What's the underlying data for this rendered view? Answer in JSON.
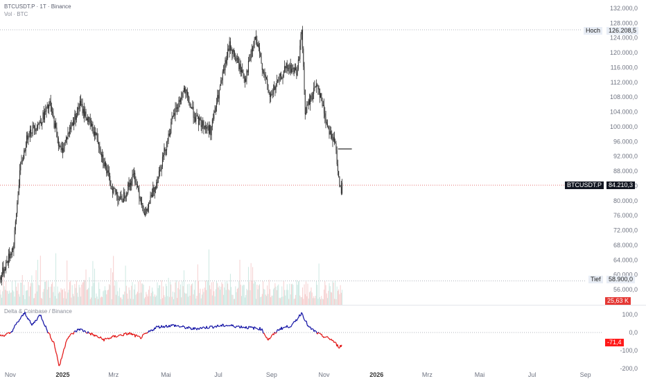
{
  "header": {
    "symbol_line": "BTCUSDT.P · 1T · Binance",
    "volume_line": "Vol · BTC",
    "osc_line": "Delta & Coinbase / Binance"
  },
  "price_axis": [
    "132.000,0",
    "128.000,0",
    "124.000,0",
    "120.000,0",
    "116.000,0",
    "112.000,0",
    "108.000,0",
    "104.000,0",
    "100.000,0",
    "96.000,0",
    "92.000,0",
    "88.000,0",
    "84.000,0",
    "80.000,0",
    "76.000,0",
    "72.000,0",
    "68.000,0",
    "64.000,0",
    "60.000,0",
    "56.000,0"
  ],
  "osc_axis": [
    "100,0",
    "0,0",
    "-100,0",
    "-200,0"
  ],
  "x_axis": [
    {
      "label": "Nov",
      "bold": false
    },
    {
      "label": "2025",
      "bold": true
    },
    {
      "label": "Mrz",
      "bold": false
    },
    {
      "label": "Mai",
      "bold": false
    },
    {
      "label": "Jul",
      "bold": false
    },
    {
      "label": "Sep",
      "bold": false
    },
    {
      "label": "Nov",
      "bold": false
    },
    {
      "label": "2026",
      "bold": true
    },
    {
      "label": "Mrz",
      "bold": false
    },
    {
      "label": "Mai",
      "bold": false
    },
    {
      "label": "Jul",
      "bold": false
    },
    {
      "label": "Sep",
      "bold": false
    }
  ],
  "labels": {
    "high_label": "Hoch",
    "high_value": "126.208,5",
    "low_label": "Tief",
    "low_value": "58.900,0",
    "symbol_tag": "BTCUSDT.P",
    "last_price": "84.210,3",
    "volume_value": "25,63 K",
    "osc_value": "-71,4"
  },
  "colors": {
    "candle": "#2b2b2b",
    "vol_up": "#c7e6df",
    "vol_down": "#f5c9c9",
    "osc_pos": "#1a1aa8",
    "osc_neg": "#e31b1b",
    "dotted": "#b0b4bd"
  },
  "chart_data": {
    "type": "candlestick",
    "price_ylim": [
      56000,
      132000
    ],
    "price_keypoints": [
      [
        "2024-10-20",
        59000
      ],
      [
        "2024-11-05",
        68000
      ],
      [
        "2024-11-12",
        88000
      ],
      [
        "2024-11-22",
        98500
      ],
      [
        "2024-12-05",
        101000
      ],
      [
        "2024-12-17",
        106000
      ],
      [
        "2024-12-30",
        93000
      ],
      [
        "2025-01-07",
        98000
      ],
      [
        "2025-01-21",
        106000
      ],
      [
        "2025-02-10",
        97000
      ],
      [
        "2025-02-26",
        84000
      ],
      [
        "2025-03-10",
        80000
      ],
      [
        "2025-03-25",
        87000
      ],
      [
        "2025-04-07",
        76000
      ],
      [
        "2025-04-21",
        86000
      ],
      [
        "2025-05-10",
        103000
      ],
      [
        "2025-05-22",
        110000
      ],
      [
        "2025-06-05",
        102000
      ],
      [
        "2025-06-22",
        99000
      ],
      [
        "2025-07-14",
        122000
      ],
      [
        "2025-08-01",
        113000
      ],
      [
        "2025-08-13",
        124000
      ],
      [
        "2025-08-30",
        108000
      ],
      [
        "2025-09-18",
        116000
      ],
      [
        "2025-10-01",
        115000
      ],
      [
        "2025-10-06",
        126208
      ],
      [
        "2025-10-10",
        104000
      ],
      [
        "2025-10-24",
        112000
      ],
      [
        "2025-11-04",
        101000
      ],
      [
        "2025-11-14",
        95000
      ],
      [
        "2025-11-21",
        81000
      ],
      [
        "2025-11-22",
        84210
      ]
    ],
    "high": 126208.5,
    "low": 58900.0,
    "last": 84210.3,
    "volume_last": "25,63 K",
    "osc_ylim": [
      -200,
      120
    ],
    "osc_keypoints": [
      [
        "2024-10-20",
        -20
      ],
      [
        "2024-11-01",
        -5
      ],
      [
        "2024-11-10",
        60
      ],
      [
        "2024-11-18",
        110
      ],
      [
        "2024-11-26",
        40
      ],
      [
        "2024-12-06",
        100
      ],
      [
        "2024-12-14",
        10
      ],
      [
        "2024-12-22",
        -60
      ],
      [
        "2024-12-28",
        -190
      ],
      [
        "2025-01-06",
        -30
      ],
      [
        "2025-01-20",
        20
      ],
      [
        "2025-02-04",
        -10
      ],
      [
        "2025-02-18",
        -40
      ],
      [
        "2025-03-04",
        -20
      ],
      [
        "2025-03-20",
        -5
      ],
      [
        "2025-04-01",
        -30
      ],
      [
        "2025-04-20",
        30
      ],
      [
        "2025-05-10",
        40
      ],
      [
        "2025-06-01",
        20
      ],
      [
        "2025-06-20",
        30
      ],
      [
        "2025-07-10",
        40
      ],
      [
        "2025-08-01",
        30
      ],
      [
        "2025-08-20",
        20
      ],
      [
        "2025-08-28",
        -40
      ],
      [
        "2025-09-10",
        20
      ],
      [
        "2025-09-25",
        40
      ],
      [
        "2025-10-06",
        110
      ],
      [
        "2025-10-14",
        30
      ],
      [
        "2025-10-28",
        -15
      ],
      [
        "2025-11-10",
        -40
      ],
      [
        "2025-11-18",
        -80
      ],
      [
        "2025-11-22",
        -71.4
      ]
    ]
  }
}
